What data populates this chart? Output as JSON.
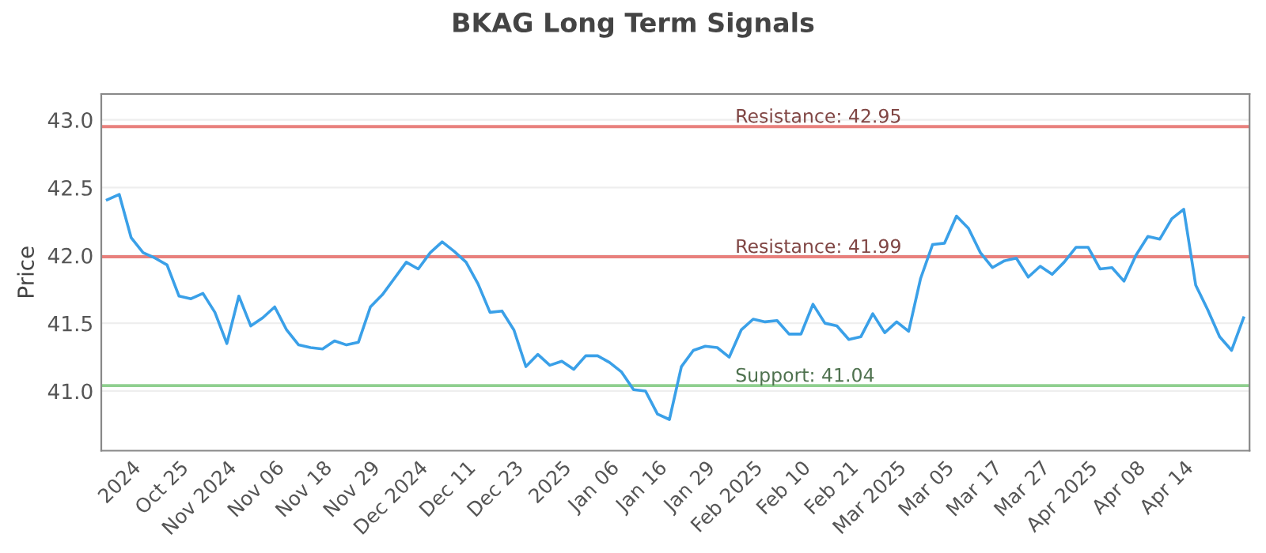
{
  "chart_data": {
    "type": "line",
    "title": "BKAG Long Term Signals",
    "ylabel": "Price",
    "categories": [
      null,
      null,
      "2024",
      null,
      null,
      null,
      "Oct 25",
      null,
      null,
      null,
      "Nov 2024",
      null,
      null,
      null,
      "Nov 06",
      null,
      null,
      null,
      "Nov 18",
      null,
      null,
      null,
      "Nov 29",
      null,
      null,
      null,
      "Dec 2024",
      null,
      null,
      null,
      "Dec 11",
      null,
      null,
      null,
      "Dec 23",
      null,
      null,
      null,
      "2025",
      null,
      null,
      null,
      "Jan 06",
      null,
      null,
      null,
      "Jan 16",
      null,
      null,
      null,
      "Jan 29",
      null,
      null,
      null,
      "Feb 2025",
      null,
      null,
      null,
      "Feb 10",
      null,
      null,
      null,
      "Feb 21",
      null,
      null,
      null,
      "Mar 2025",
      null,
      null,
      null,
      "Mar 05",
      null,
      null,
      null,
      "Mar 17",
      null,
      null,
      null,
      "Mar 27",
      null,
      null,
      null,
      "Apr 2025",
      null,
      null,
      null,
      "Apr 08",
      null,
      null,
      null,
      "Apr 14",
      null,
      null,
      null,
      null,
      null
    ],
    "series": [
      {
        "color": "#3aa0e8",
        "values": [
          42.41,
          42.45,
          42.13,
          42.02,
          41.98,
          41.93,
          41.7,
          41.68,
          41.72,
          41.58,
          41.35,
          41.7,
          41.48,
          41.54,
          41.62,
          41.45,
          41.34,
          41.32,
          41.31,
          41.37,
          41.34,
          41.36,
          41.62,
          41.71,
          41.83,
          41.95,
          41.9,
          42.02,
          42.1,
          42.03,
          41.95,
          41.79,
          41.58,
          41.59,
          41.45,
          41.18,
          41.27,
          41.19,
          41.22,
          41.16,
          41.26,
          41.26,
          41.21,
          41.14,
          41.01,
          41.0,
          40.83,
          40.79,
          41.18,
          41.3,
          41.33,
          41.32,
          41.25,
          41.45,
          41.53,
          41.51,
          41.52,
          41.42,
          41.42,
          41.64,
          41.5,
          41.48,
          41.38,
          41.4,
          41.57,
          41.43,
          41.51,
          41.44,
          41.83,
          42.08,
          42.09,
          42.29,
          42.2,
          42.02,
          41.91,
          41.96,
          41.98,
          41.84,
          41.92,
          41.86,
          41.95,
          42.06,
          42.06,
          41.9,
          41.91,
          41.81,
          42.0,
          42.14,
          42.12,
          42.27,
          42.34,
          41.78,
          41.6,
          41.4,
          41.3,
          41.54
        ]
      }
    ],
    "ylim": [
      40.56,
      43.19
    ],
    "yticks": [
      {
        "value": 41.0,
        "label": "41.0"
      },
      {
        "value": 41.5,
        "label": "41.5"
      },
      {
        "value": 42.0,
        "label": "42.0"
      },
      {
        "value": 42.5,
        "label": "42.5"
      },
      {
        "value": 43.0,
        "label": "43.0"
      }
    ],
    "grid": "y",
    "legend": false,
    "marker": "none",
    "line_style": "solid",
    "ref_lines": [
      {
        "axis": "y",
        "value": 42.95,
        "label": "Resistance: 42.95",
        "color": "#e8807c"
      },
      {
        "axis": "y",
        "value": 41.99,
        "label": "Resistance: 41.99",
        "color": "#e8807c"
      },
      {
        "axis": "y",
        "value": 41.04,
        "label": "Support: 41.04",
        "color": "#8fcf8f"
      }
    ]
  }
}
